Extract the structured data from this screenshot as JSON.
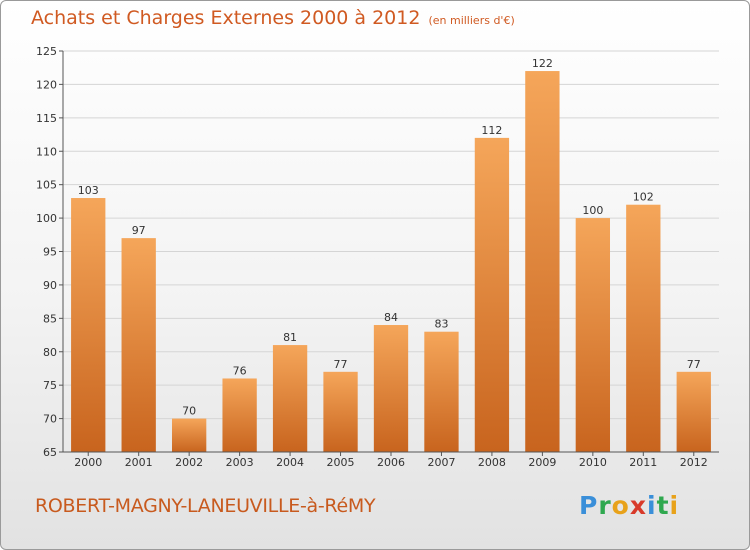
{
  "title": "Achats et Charges Externes 2000 à 2012",
  "subtitle": "(en milliers d'€)",
  "commune": "ROBERT-MAGNY-LANEUVILLE-à-RéMY",
  "logo": {
    "letters": [
      "P",
      "r",
      "o",
      "x",
      "i",
      "t",
      "i"
    ],
    "colors": [
      "#3a8fd9",
      "#2fa84f",
      "#e8a21a",
      "#d83a2a",
      "#3a8fd9",
      "#2fa84f",
      "#e8a21a"
    ]
  },
  "colors": {
    "title": "#d05a22",
    "bar_top": "#f5a65a",
    "bar_bottom": "#c8641e",
    "grid": "#d5d5d5"
  },
  "chart_data": {
    "type": "bar",
    "title": "Achats et Charges Externes 2000 à 2012",
    "subtitle": "(en milliers d'€)",
    "categories": [
      "2000",
      "2001",
      "2002",
      "2003",
      "2004",
      "2005",
      "2006",
      "2007",
      "2008",
      "2009",
      "2010",
      "2011",
      "2012"
    ],
    "values": [
      103,
      97,
      70,
      76,
      81,
      77,
      84,
      83,
      112,
      122,
      100,
      102,
      77
    ],
    "ylim": [
      65,
      125
    ],
    "yticks": [
      65,
      70,
      75,
      80,
      85,
      90,
      95,
      100,
      105,
      110,
      115,
      120,
      125
    ],
    "grid": true,
    "xlabel": "",
    "ylabel": ""
  }
}
